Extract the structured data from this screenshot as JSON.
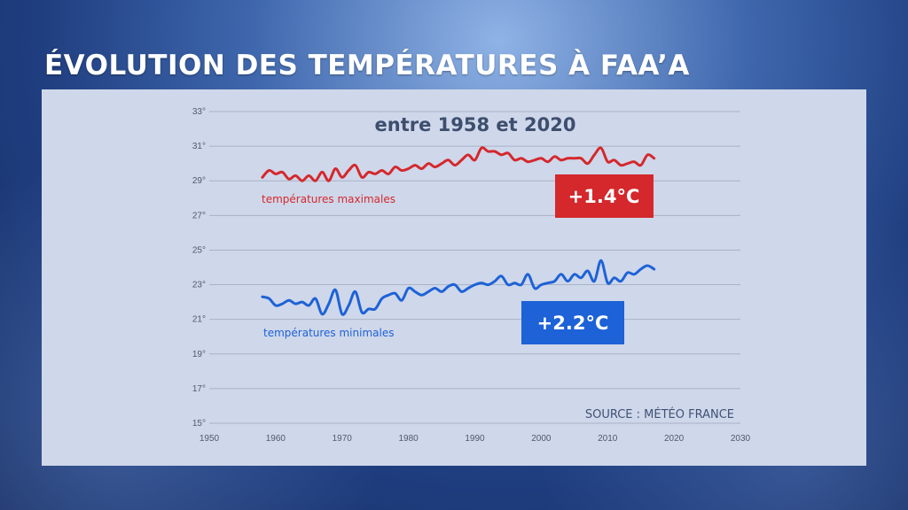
{
  "headline": "ÉVOLUTION DES TEMPÉRATURES À FAA’A",
  "colors": {
    "max": "#d4282c",
    "min": "#1d62d6",
    "grid": "#a9b3c6"
  },
  "chart_data": {
    "type": "line",
    "title": "entre 1958 et 2020",
    "source": "SOURCE : MÉTÉO FRANCE",
    "xlim": [
      1950,
      2030
    ],
    "ylim": [
      15,
      33
    ],
    "xticks": [
      {
        "v": 1950,
        "label": "1950"
      },
      {
        "v": 1960,
        "label": "1960"
      },
      {
        "v": 1970,
        "label": "1970"
      },
      {
        "v": 1980,
        "label": "1980"
      },
      {
        "v": 1990,
        "label": "1990"
      },
      {
        "v": 2000,
        "label": "2000"
      },
      {
        "v": 2010,
        "label": "2010"
      },
      {
        "v": 2020,
        "label": "2020"
      },
      {
        "v": 2030,
        "label": "2030"
      }
    ],
    "yticks": [
      {
        "v": 15,
        "label": "15°"
      },
      {
        "v": 17,
        "label": "17°"
      },
      {
        "v": 19,
        "label": "19°"
      },
      {
        "v": 21,
        "label": "21°"
      },
      {
        "v": 23,
        "label": "23°"
      },
      {
        "v": 25,
        "label": "25°"
      },
      {
        "v": 27,
        "label": "27°"
      },
      {
        "v": 29,
        "label": "29°"
      },
      {
        "v": 31,
        "label": "31°"
      },
      {
        "v": 33,
        "label": "33°"
      }
    ],
    "grid": true,
    "series": [
      {
        "name": "températures maximales",
        "change": "+1.4°C",
        "color": "#d4282c",
        "x": [
          1958,
          1959,
          1960,
          1961,
          1962,
          1963,
          1964,
          1965,
          1966,
          1967,
          1968,
          1969,
          1970,
          1971,
          1972,
          1973,
          1974,
          1975,
          1976,
          1977,
          1978,
          1979,
          1980,
          1981,
          1982,
          1983,
          1984,
          1985,
          1986,
          1987,
          1988,
          1989,
          1990,
          1991,
          1992,
          1993,
          1994,
          1995,
          1996,
          1997,
          1998,
          1999,
          2000,
          2001,
          2002,
          2003,
          2004,
          2005,
          2006,
          2007,
          2008,
          2009,
          2010,
          2011,
          2012,
          2013,
          2014,
          2015,
          2016,
          2017
        ],
        "y": [
          29.2,
          29.6,
          29.4,
          29.5,
          29.1,
          29.3,
          29.0,
          29.3,
          29.0,
          29.5,
          29.0,
          29.7,
          29.2,
          29.6,
          29.9,
          29.2,
          29.5,
          29.4,
          29.6,
          29.4,
          29.8,
          29.6,
          29.7,
          29.9,
          29.7,
          30.0,
          29.8,
          30.0,
          30.2,
          29.9,
          30.2,
          30.5,
          30.2,
          30.9,
          30.7,
          30.7,
          30.5,
          30.6,
          30.2,
          30.3,
          30.1,
          30.2,
          30.3,
          30.1,
          30.4,
          30.2,
          30.3,
          30.3,
          30.3,
          30.0,
          30.5,
          30.9,
          30.1,
          30.2,
          29.9,
          30.0,
          30.1,
          29.9,
          30.5,
          30.3
        ]
      },
      {
        "name": "températures minimales",
        "change": "+2.2°C",
        "color": "#1d62d6",
        "x": [
          1958,
          1959,
          1960,
          1961,
          1962,
          1963,
          1964,
          1965,
          1966,
          1967,
          1968,
          1969,
          1970,
          1971,
          1972,
          1973,
          1974,
          1975,
          1976,
          1977,
          1978,
          1979,
          1980,
          1981,
          1982,
          1983,
          1984,
          1985,
          1986,
          1987,
          1988,
          1989,
          1990,
          1991,
          1992,
          1993,
          1994,
          1995,
          1996,
          1997,
          1998,
          1999,
          2000,
          2001,
          2002,
          2003,
          2004,
          2005,
          2006,
          2007,
          2008,
          2009,
          2010,
          2011,
          2012,
          2013,
          2014,
          2015,
          2016,
          2017
        ],
        "y": [
          22.3,
          22.2,
          21.8,
          21.9,
          22.1,
          21.9,
          22.0,
          21.8,
          22.2,
          21.3,
          21.9,
          22.7,
          21.3,
          21.8,
          22.6,
          21.4,
          21.6,
          21.6,
          22.2,
          22.4,
          22.5,
          22.1,
          22.8,
          22.6,
          22.4,
          22.6,
          22.8,
          22.6,
          22.9,
          23.0,
          22.6,
          22.8,
          23.0,
          23.1,
          23.0,
          23.2,
          23.5,
          23.0,
          23.1,
          23.0,
          23.6,
          22.8,
          23.0,
          23.1,
          23.2,
          23.6,
          23.2,
          23.6,
          23.4,
          23.8,
          23.2,
          24.4,
          23.1,
          23.4,
          23.2,
          23.7,
          23.6,
          23.9,
          24.1,
          23.9
        ]
      }
    ]
  }
}
